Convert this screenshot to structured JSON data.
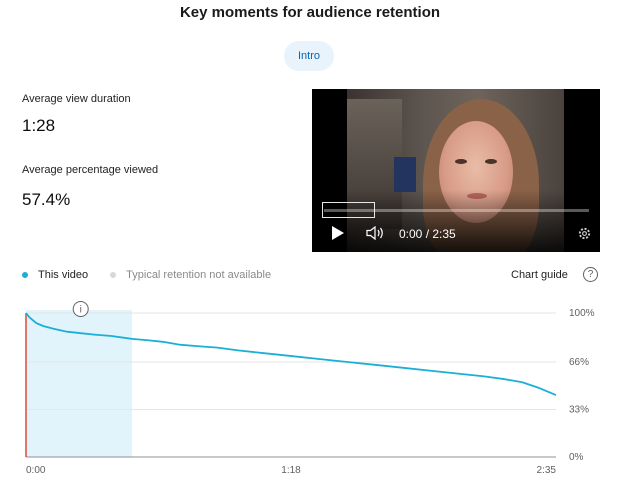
{
  "header": {
    "title": "Key moments for audience retention"
  },
  "chip": {
    "label": "Intro"
  },
  "metrics": [
    {
      "label": "Average view duration",
      "value": "1:28"
    },
    {
      "label": "Average percentage viewed",
      "value": "57.4%"
    }
  ],
  "player": {
    "time": "0:00 / 2:35",
    "progress": 0.0,
    "icons": {
      "play": "play-icon",
      "volume": "volume-icon",
      "settings": "settings-icon"
    }
  },
  "legend": {
    "items": [
      {
        "label": "This video",
        "color": "#1ab0d6"
      },
      {
        "label": "Typical retention not available",
        "color": "#d8d8d8"
      }
    ],
    "guide_label": "Chart guide",
    "help_symbol": "?"
  },
  "chart_data": {
    "type": "area",
    "x_unit": "seconds",
    "x_range": [
      0,
      155
    ],
    "y_range": [
      0,
      100
    ],
    "x_tick_labels": [
      "0:00",
      "1:18",
      "2:35"
    ],
    "y_tick_labels": [
      "100%",
      "66%",
      "33%",
      "0%"
    ],
    "y_tick_values": [
      100,
      66,
      33,
      0
    ],
    "highlight_range": [
      0,
      31
    ],
    "info_marker": {
      "x": 16,
      "symbol": "i"
    },
    "colors": {
      "line": "#1ab0d6",
      "highlight": "#e1f3fb",
      "start_marker": "#e0493a"
    },
    "series": [
      {
        "x": [
          0,
          1,
          3,
          5,
          8,
          12,
          16,
          20,
          25,
          31,
          36,
          40,
          45,
          50,
          56,
          62,
          70,
          78,
          86,
          94,
          102,
          110,
          118,
          126,
          134,
          140,
          145,
          150,
          155
        ],
        "y": [
          100,
          97,
          93,
          91,
          89,
          87,
          86,
          85,
          84,
          82,
          81,
          80,
          78,
          77,
          76,
          74,
          72,
          70,
          68,
          66,
          64,
          62,
          60,
          58,
          56,
          54,
          52,
          48,
          43
        ]
      }
    ]
  }
}
